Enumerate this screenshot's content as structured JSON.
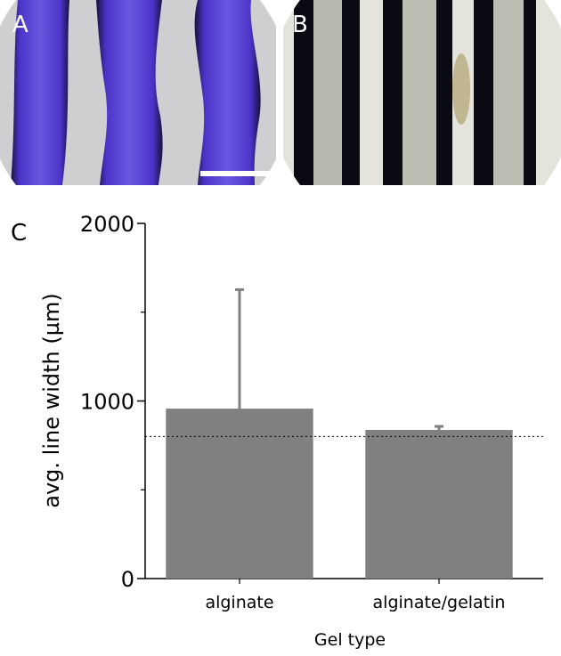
{
  "panel_labels": [
    "A",
    "B"
  ],
  "chart_data": {
    "type": "bar",
    "panel_label": "C",
    "xlabel": "Gel type",
    "ylabel": "avg. line width (µm)",
    "categories": [
      "alginate",
      "alginate/gelatin"
    ],
    "values": [
      957,
      837
    ],
    "errors": [
      670,
      20
    ],
    "color": "#808080",
    "ylim": [
      0,
      2000
    ],
    "yticks": [
      0,
      1000,
      2000
    ],
    "minor_yticks": [
      500,
      1500
    ],
    "reference_line": 800
  }
}
